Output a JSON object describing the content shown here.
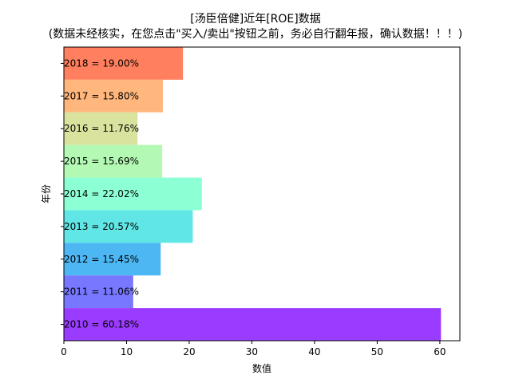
{
  "chart_data": {
    "type": "bar",
    "orientation": "horizontal",
    "title": "[汤臣倍健]近年[ROE]数据",
    "subtitle": "(数据未经核实，在您点击\"买入/卖出\"按钮之前，务必自行翻年报，确认数据！！！)",
    "xlabel": "数值",
    "ylabel": "年份",
    "categories": [
      "2018",
      "2017",
      "2016",
      "2015",
      "2014",
      "2013",
      "2012",
      "2011",
      "2010"
    ],
    "values": [
      19.0,
      15.8,
      11.76,
      15.69,
      22.02,
      20.57,
      15.45,
      11.06,
      60.18
    ],
    "bar_labels": [
      "2018 = 19.00%",
      "2017 = 15.80%",
      "2016 = 11.76%",
      "2015 = 15.69%",
      "2014 = 22.02%",
      "2013 = 20.57%",
      "2012 = 15.45%",
      "2011 = 11.06%",
      "2010 = 60.18%"
    ],
    "colors": [
      "#ff7f5e",
      "#ffb77d",
      "#dae39e",
      "#b3f8b3",
      "#8cffd5",
      "#61e6e6",
      "#4db7f3",
      "#7777ff",
      "#9a3cff"
    ],
    "xlim": [
      0,
      63.2
    ],
    "xticks": [
      0,
      10,
      20,
      30,
      40,
      50,
      60
    ],
    "grid": false,
    "legend": "none"
  }
}
